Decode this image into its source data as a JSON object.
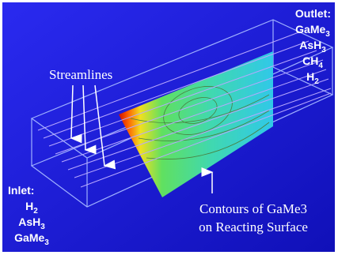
{
  "outlet": {
    "title": "Outlet:",
    "species": [
      {
        "base": "GaMe",
        "sub": "3"
      },
      {
        "base": "AsH",
        "sub": "3"
      },
      {
        "base": "CH",
        "sub": "4"
      },
      {
        "base": "H",
        "sub": "2"
      }
    ]
  },
  "inlet": {
    "title": "Inlet:",
    "species": [
      {
        "base": "H",
        "sub": "2"
      },
      {
        "base": "AsH",
        "sub": "3"
      },
      {
        "base": "GaMe",
        "sub": "3"
      }
    ]
  },
  "streamlines_label": "Streamlines",
  "contours_label": [
    "Contours of GaMe3",
    "on Reacting Surface"
  ]
}
